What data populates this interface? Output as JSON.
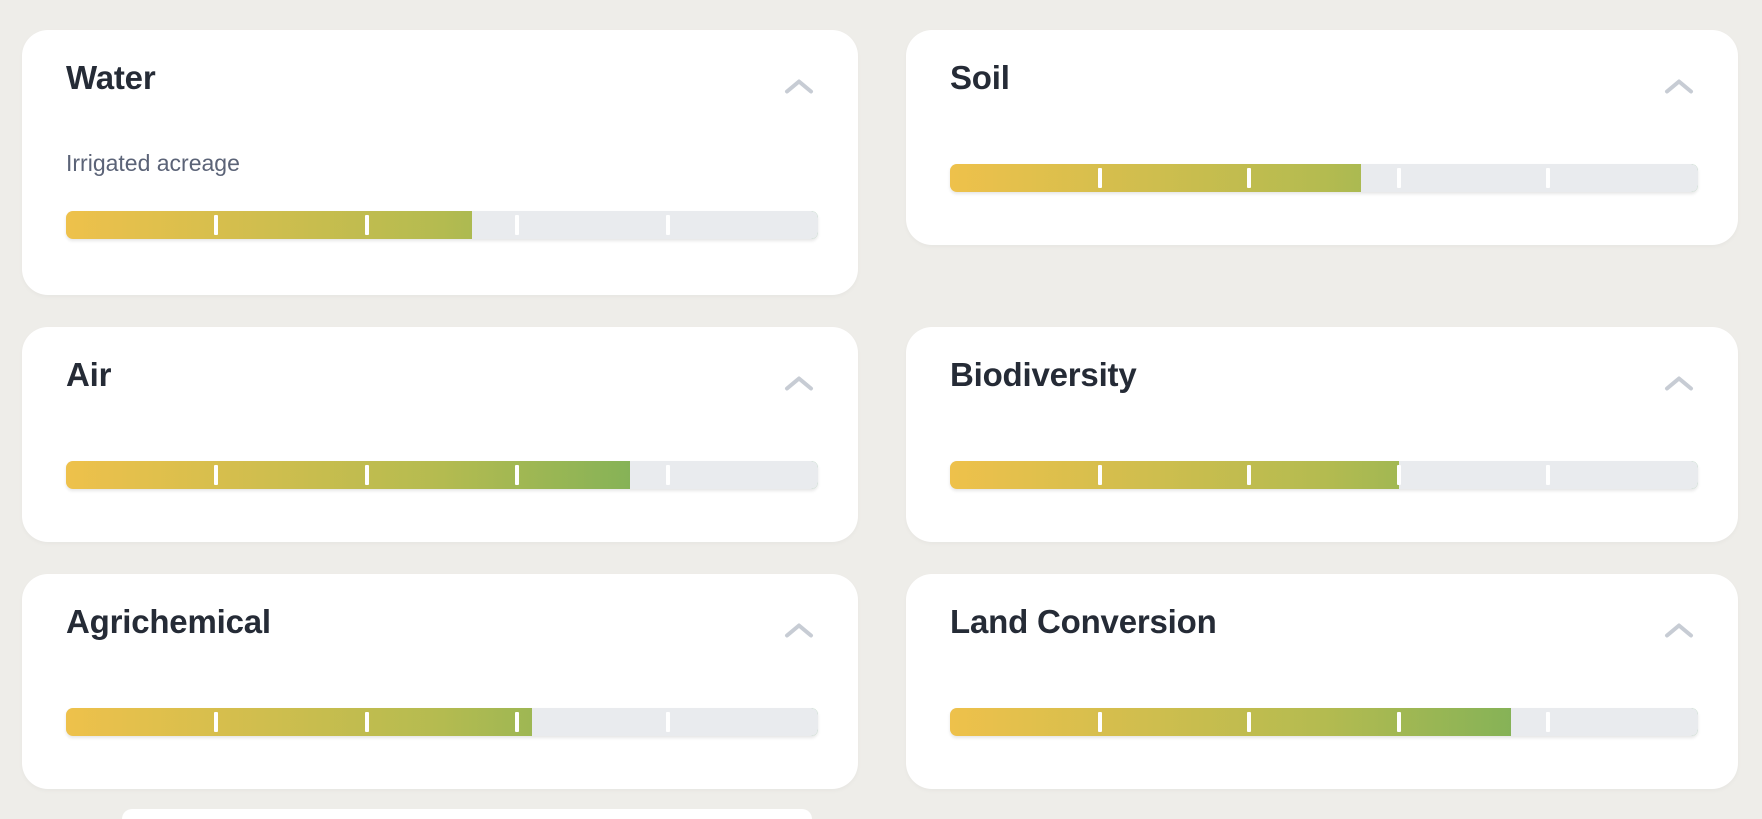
{
  "page": {
    "background_color": "#eeede9"
  },
  "cards": [
    {
      "title": "Water",
      "metric_label": "Irrigated acreage",
      "progress_percent": 54
    },
    {
      "title": "Soil",
      "progress_percent": 55
    },
    {
      "title": "Air",
      "progress_percent": 75
    },
    {
      "title": "Biodiversity",
      "progress_percent": 60
    },
    {
      "title": "Agrichemical",
      "progress_percent": 62
    },
    {
      "title": "Land Conversion",
      "progress_percent": 75
    }
  ],
  "progress_bar": {
    "tick_positions_percent": [
      20,
      40,
      60,
      80
    ],
    "gradient_colors": [
      "#eec14b",
      "#b4bb50",
      "#58aa5e"
    ],
    "track_color": "#e9ebee",
    "tick_color": "#ffffff"
  },
  "colors": {
    "card_background": "#ffffff",
    "title_text": "#252b36",
    "label_text": "#5b6377",
    "chevron": "#c7ccd4"
  }
}
